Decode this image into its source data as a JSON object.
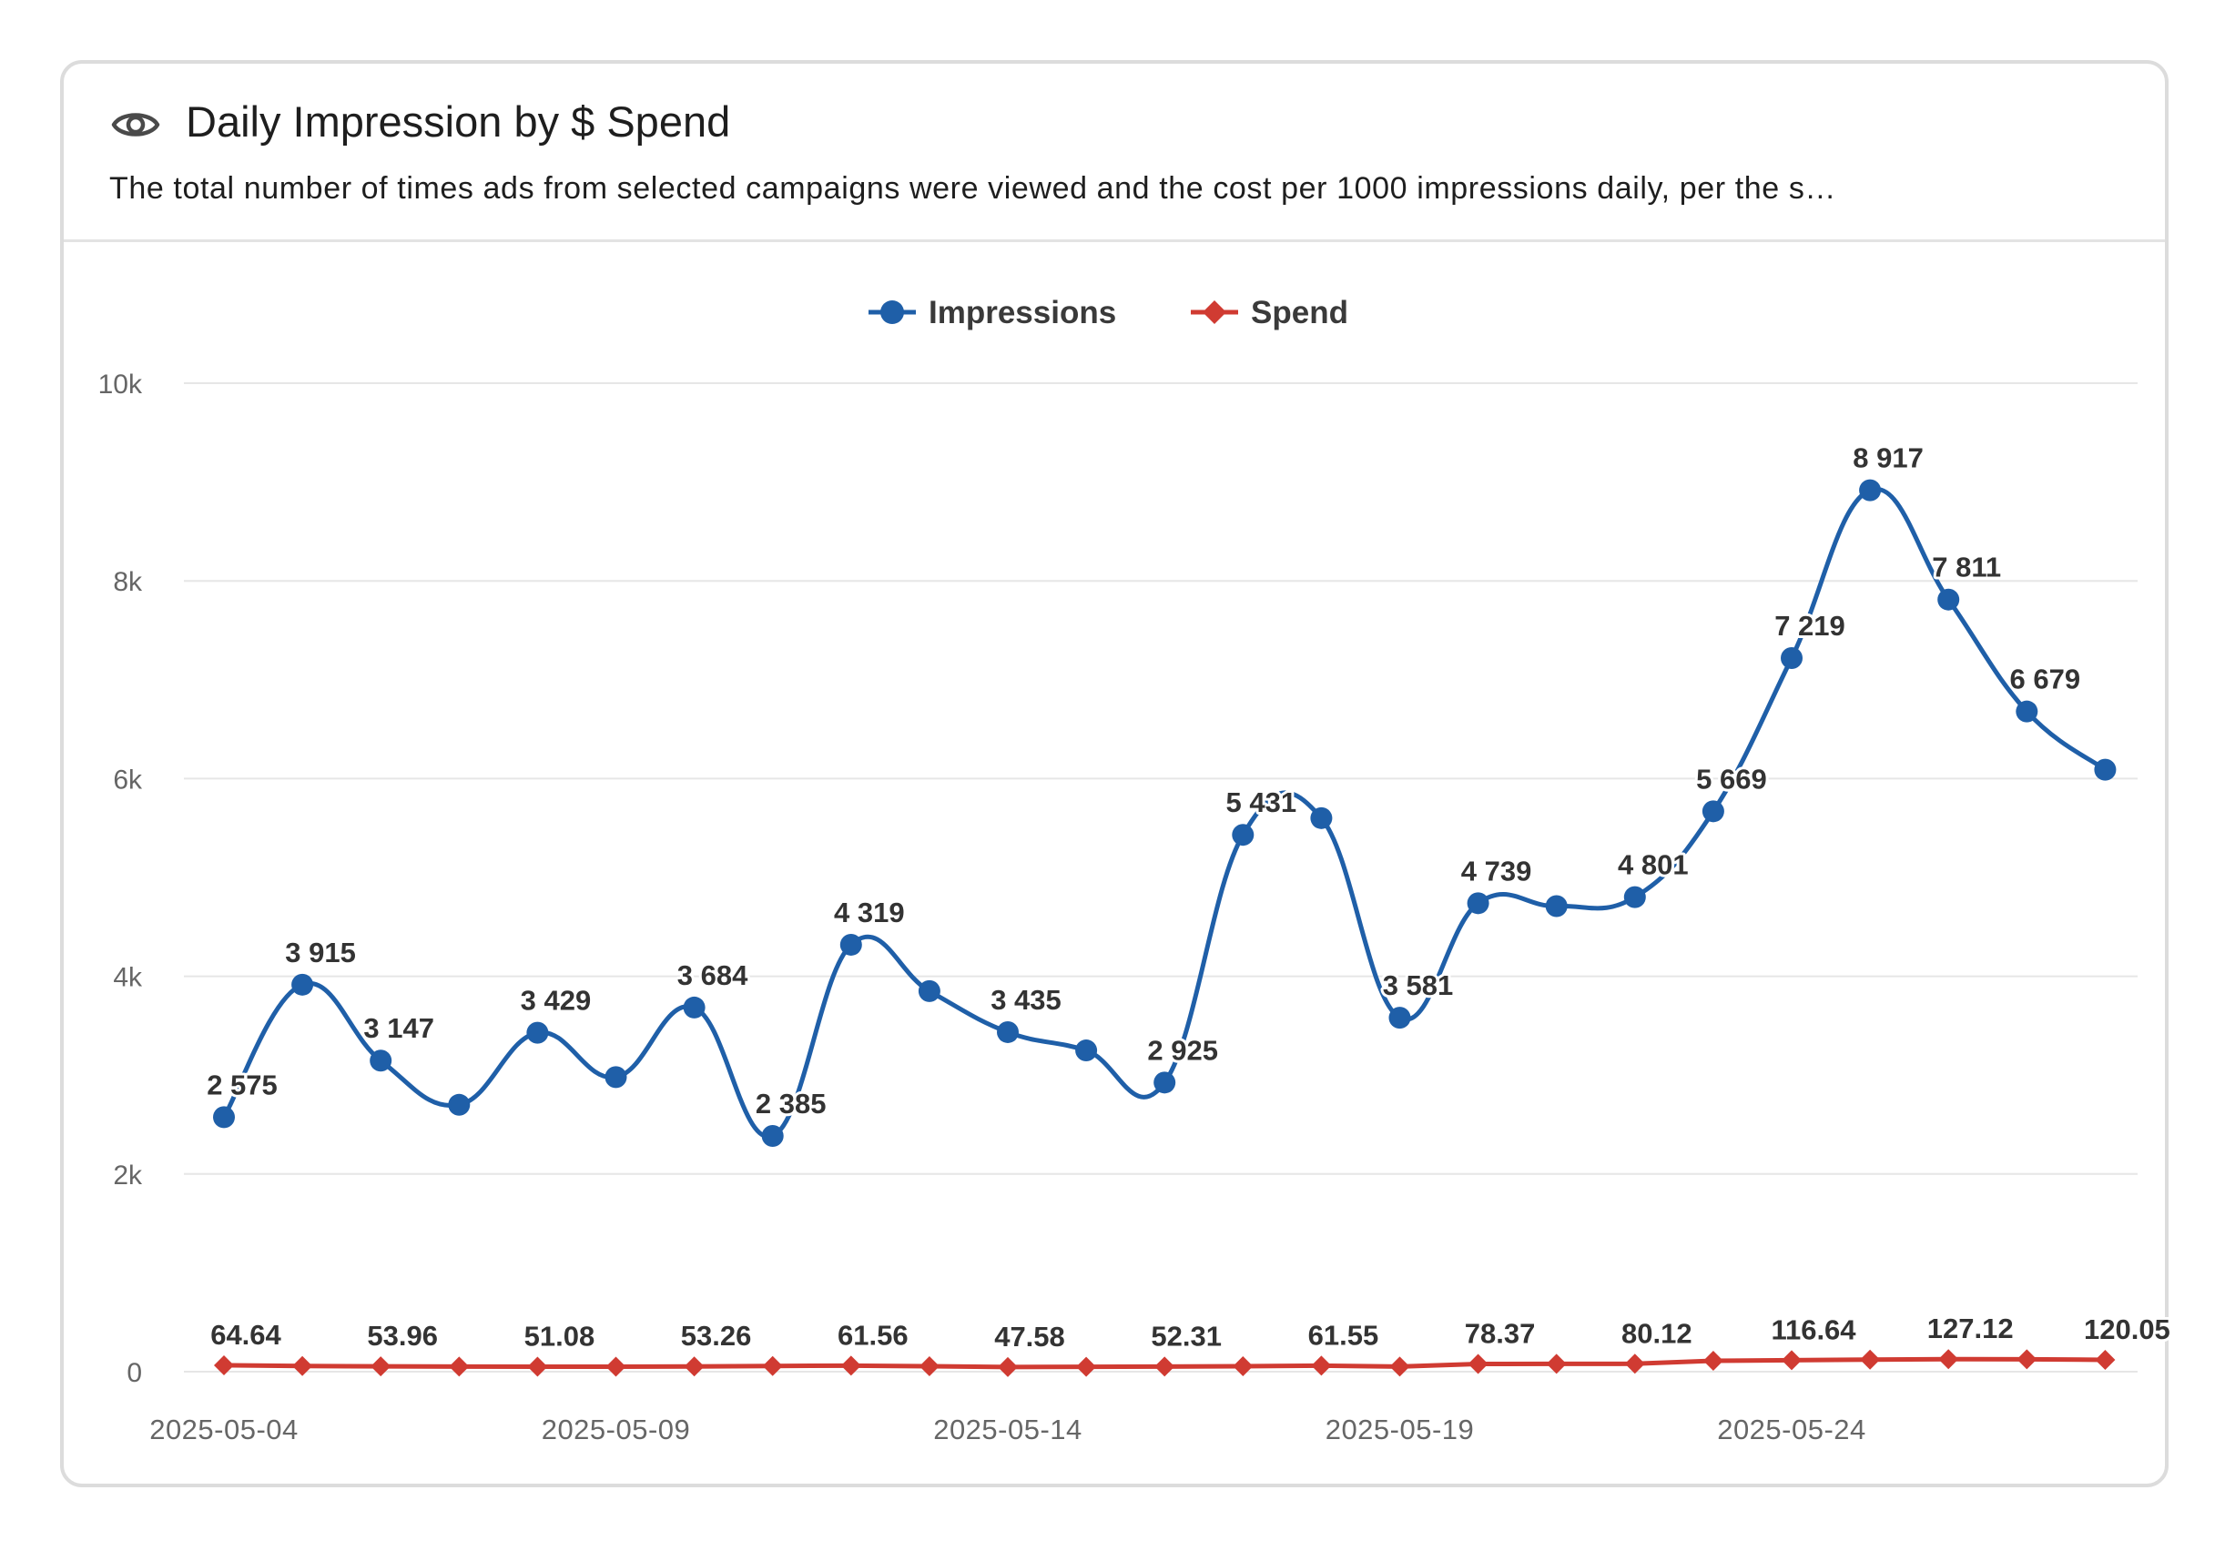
{
  "header": {
    "icon": "eye-icon",
    "title": "Daily Impression by $ Spend",
    "subtitle": "The total number of times ads from selected campaigns were viewed and the cost per 1000 impressions daily, per the s…"
  },
  "chart_data": {
    "type": "line",
    "x": [
      "2025-05-04",
      "2025-05-05",
      "2025-05-06",
      "2025-05-07",
      "2025-05-08",
      "2025-05-09",
      "2025-05-10",
      "2025-05-11",
      "2025-05-12",
      "2025-05-13",
      "2025-05-14",
      "2025-05-15",
      "2025-05-16",
      "2025-05-17",
      "2025-05-18",
      "2025-05-19",
      "2025-05-20",
      "2025-05-21",
      "2025-05-22",
      "2025-05-23",
      "2025-05-24",
      "2025-05-25",
      "2025-05-26",
      "2025-05-27",
      "2025-05-28"
    ],
    "xticks": [
      "2025-05-04",
      "2025-05-09",
      "2025-05-14",
      "2025-05-19",
      "2025-05-24"
    ],
    "yticks": [
      0,
      2000,
      4000,
      6000,
      8000,
      10000
    ],
    "ytick_labels": [
      "0",
      "2k",
      "4k",
      "6k",
      "8k",
      "10k"
    ],
    "ylim": [
      0,
      10000
    ],
    "grid": true,
    "legend": "top-center",
    "series": [
      {
        "name": "Impressions",
        "color": "#1f5fa8",
        "marker": "circle",
        "smooth": true,
        "values": [
          2575,
          3915,
          3147,
          2700,
          3429,
          2980,
          3684,
          2385,
          4319,
          3850,
          3435,
          3250,
          2925,
          5431,
          5600,
          3581,
          4739,
          4710,
          4801,
          5669,
          7219,
          8917,
          7811,
          6679,
          6090
        ],
        "labels": [
          "2 575",
          "3 915",
          "3 147",
          "",
          "3 429",
          "",
          "3 684",
          "2 385",
          "4 319",
          "",
          "3 435",
          "",
          "2 925",
          "5 431",
          "",
          "3 581",
          "4 739",
          "",
          "4 801",
          "5 669",
          "7 219",
          "8 917",
          "7 811",
          "6 679",
          ""
        ]
      },
      {
        "name": "Spend",
        "color": "#d03b32",
        "marker": "diamond",
        "smooth": false,
        "values": [
          64.64,
          58.0,
          53.96,
          52.0,
          51.08,
          50.5,
          53.26,
          58.0,
          61.56,
          55.0,
          47.58,
          49.0,
          52.31,
          55.0,
          61.55,
          52.0,
          78.37,
          79.0,
          80.12,
          110.0,
          116.64,
          122.0,
          127.12,
          126.0,
          120.05
        ],
        "labels": [
          "64.64",
          "",
          "53.96",
          "",
          "51.08",
          "",
          "53.26",
          "",
          "61.56",
          "",
          "47.58",
          "",
          "52.31",
          "",
          "61.55",
          "",
          "78.37",
          "",
          "80.12",
          "",
          "116.64",
          "",
          "127.12",
          "",
          "120.05"
        ]
      }
    ]
  }
}
